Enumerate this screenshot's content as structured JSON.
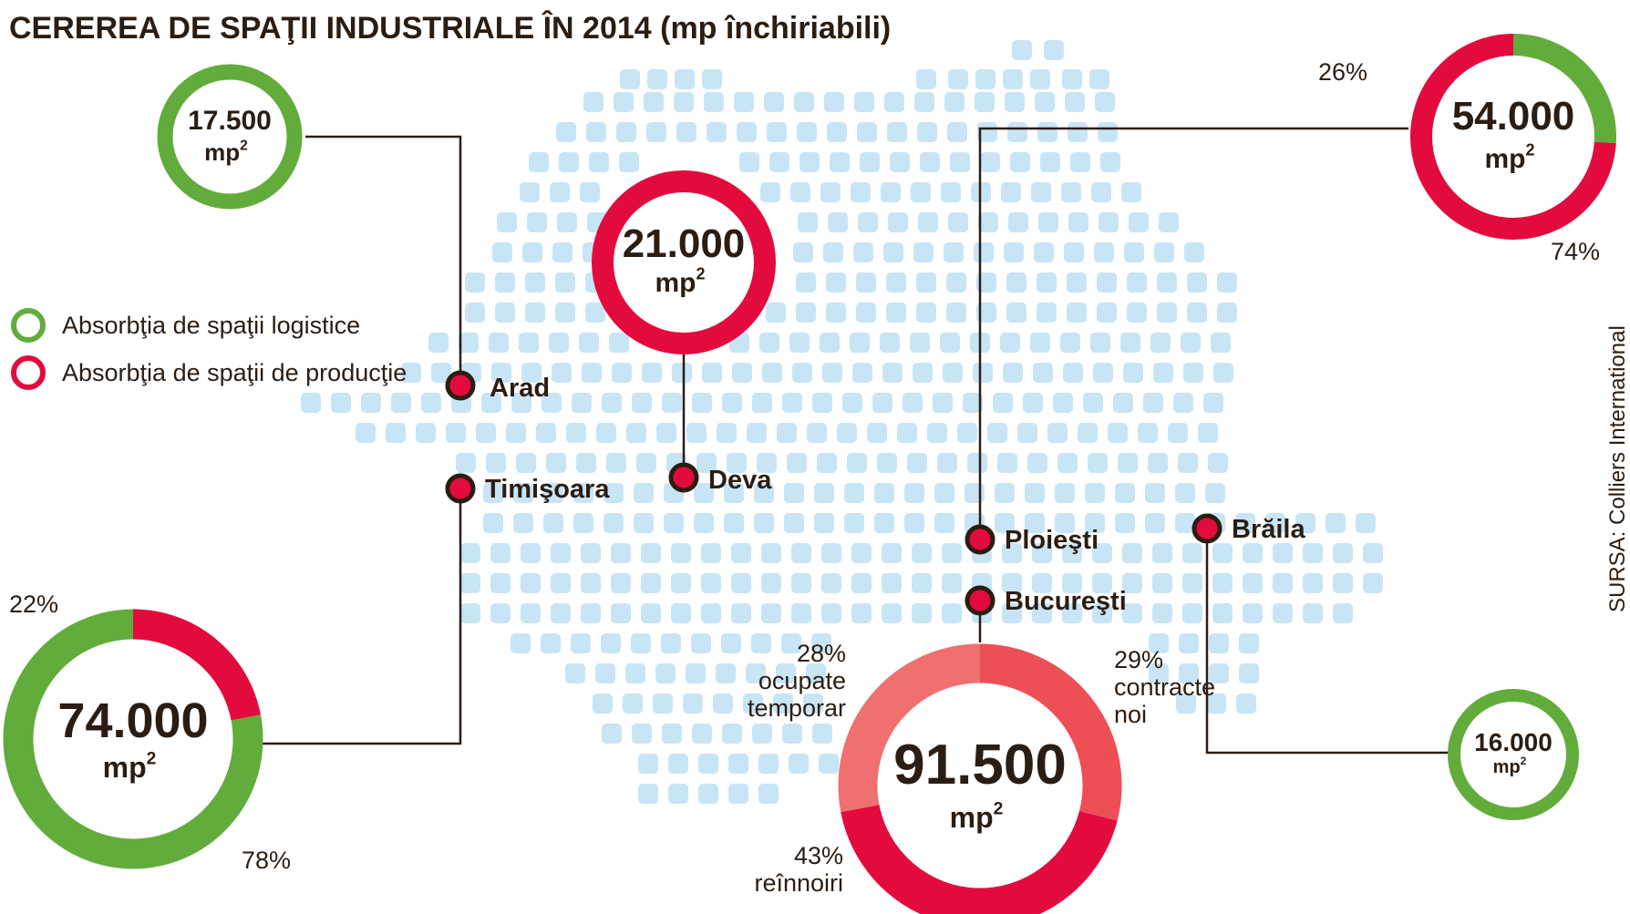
{
  "title": "CEREREA DE SPAŢII INDUSTRIALE ÎN 2014 (mp închiriabili)",
  "source": "SURSA: Colliers International",
  "colors": {
    "logistic": "#62ac3c",
    "production": "#e30b3d",
    "map_dot": "#c8e5f6",
    "text": "#2b1d12",
    "bucharest_a": "#f07070",
    "bucharest_b": "#ee4e55",
    "bucharest_c": "#e30b3d"
  },
  "legend": [
    {
      "label": "Absorbţia de spaţii logistice",
      "color_key": "logistic"
    },
    {
      "label": "Absorbţia de spaţii de producţie",
      "color_key": "production"
    }
  ],
  "cities": [
    {
      "id": "arad",
      "name": "Arad"
    },
    {
      "id": "timisoara",
      "name": "Timişoara"
    },
    {
      "id": "deva",
      "name": "Deva"
    },
    {
      "id": "ploiesti",
      "name": "Ploieşti"
    },
    {
      "id": "bucuresti",
      "name": "Bucureşti"
    },
    {
      "id": "braila",
      "name": "Brăila"
    }
  ],
  "chart_data": {
    "type": "pie",
    "unit": "mp",
    "donuts": [
      {
        "id": "arad",
        "city": "Arad",
        "value": "17.500",
        "unit": "mp",
        "unit_sup": "2",
        "segments": [
          {
            "category": "logistic",
            "percent": 100
          }
        ]
      },
      {
        "id": "deva",
        "city": "Deva",
        "value": "21.000",
        "unit": "mp",
        "unit_sup": "2",
        "segments": [
          {
            "category": "production",
            "percent": 100
          }
        ]
      },
      {
        "id": "ploiesti",
        "city": "Ploieşti",
        "value": "54.000",
        "unit": "mp",
        "unit_sup": "2",
        "segments": [
          {
            "category": "logistic",
            "percent": 26,
            "label": "26%"
          },
          {
            "category": "production",
            "percent": 74,
            "label": "74%"
          }
        ]
      },
      {
        "id": "timisoara",
        "city": "Timişoara",
        "value": "74.000",
        "unit": "mp",
        "unit_sup": "2",
        "segments": [
          {
            "category": "logistic",
            "percent": 78,
            "label": "78%"
          },
          {
            "category": "production",
            "percent": 22,
            "label": "22%"
          }
        ]
      },
      {
        "id": "bucuresti",
        "city": "Bucureşti",
        "value": "91.500",
        "unit": "mp",
        "unit_sup": "2",
        "segments": [
          {
            "category": "contracte noi",
            "percent": 29,
            "label": "29%",
            "text_lines": [
              "contracte",
              "noi"
            ]
          },
          {
            "category": "reînnoiri",
            "percent": 43,
            "label": "43%",
            "text_lines": [
              "reînnoiri"
            ]
          },
          {
            "category": "ocupate temporar",
            "percent": 28,
            "label": "28%",
            "text_lines": [
              "ocupate",
              "temporar"
            ]
          }
        ]
      },
      {
        "id": "braila",
        "city": "Brăila",
        "value": "16.000",
        "unit": "mp",
        "unit_sup": "2",
        "segments": [
          {
            "category": "logistic",
            "percent": 100
          }
        ]
      }
    ]
  }
}
